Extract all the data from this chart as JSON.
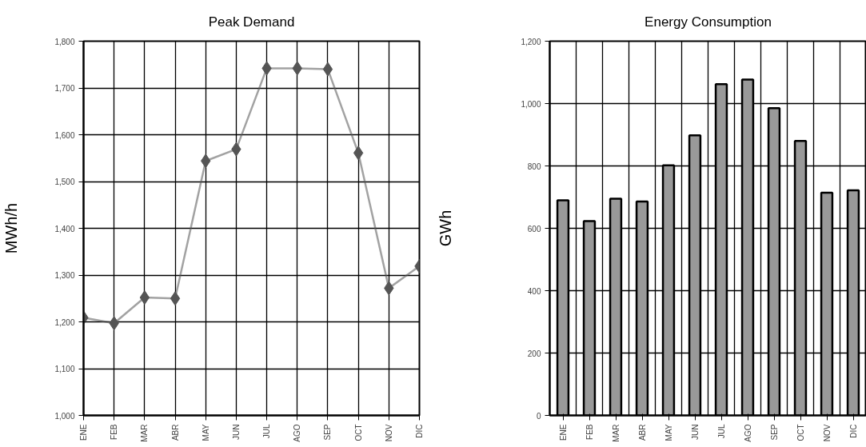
{
  "chart_data": [
    {
      "type": "line",
      "title": "Peak Demand",
      "ylabel": "MWh/h",
      "categories": [
        "ENE",
        "FEB",
        "MAR",
        "ABR",
        "MAY",
        "JUN",
        "JUL",
        "AGO",
        "SEP",
        "OCT",
        "NOV",
        "DIC"
      ],
      "series": [
        {
          "color": "#555555",
          "values": [
            1209,
            1197,
            1252,
            1250,
            1544,
            1569,
            1742,
            1742,
            1740,
            1561,
            1272,
            1319
          ]
        }
      ],
      "ylim": [
        1000,
        1800
      ],
      "yticks": [
        {
          "value": 1000,
          "label": "1,000"
        },
        {
          "value": 1100,
          "label": "1,100"
        },
        {
          "value": 1200,
          "label": "1,200"
        },
        {
          "value": 1300,
          "label": "1,300"
        },
        {
          "value": 1400,
          "label": "1,400"
        },
        {
          "value": 1500,
          "label": "1,500"
        },
        {
          "value": 1600,
          "label": "1,600"
        },
        {
          "value": 1700,
          "label": "1,700"
        },
        {
          "value": 1800,
          "label": "1,800"
        }
      ],
      "grid": true,
      "marker": "diamond",
      "line_style": "solid"
    },
    {
      "type": "bar",
      "title": "Energy Consumption",
      "ylabel": "GWh",
      "categories": [
        "ENE",
        "FEB",
        "MAR",
        "ABR",
        "MAY",
        "JUN",
        "JUL",
        "AGO",
        "SEP",
        "OCT",
        "NOV",
        "DIC"
      ],
      "series": [
        {
          "color": "#999999",
          "values": [
            690,
            623,
            695,
            686,
            802,
            898,
            1062,
            1077,
            985,
            880,
            714,
            722
          ]
        }
      ],
      "ylim": [
        0,
        1200
      ],
      "yticks": [
        0,
        200,
        400,
        600,
        800,
        {
          "value": 1000,
          "label": "1,000"
        },
        {
          "value": 1200,
          "label": "1,200"
        }
      ],
      "grid": true
    }
  ]
}
